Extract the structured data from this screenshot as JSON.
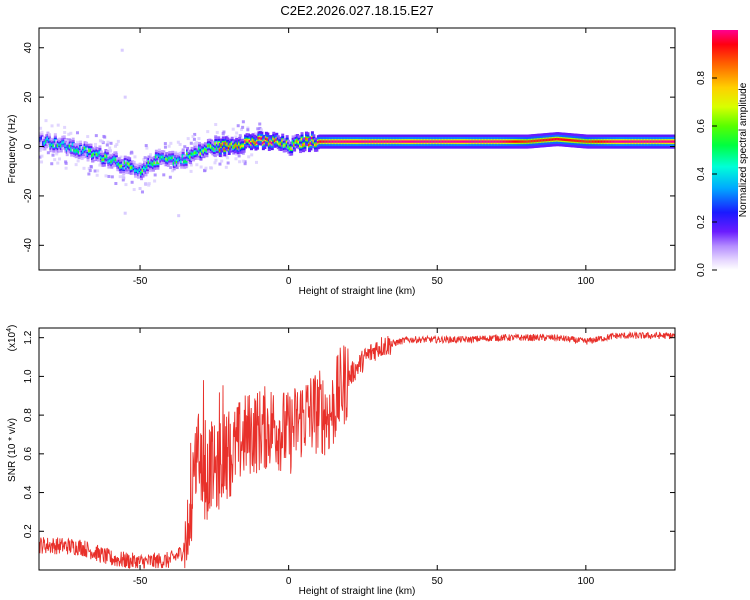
{
  "title": "C2E2.2026.027.18.15.E27",
  "chart_data": [
    {
      "type": "heatmap",
      "xlabel": "Height of straight line (km)",
      "ylabel": "Frequency (Hz)",
      "xlim": [
        -84,
        130
      ],
      "ylim": [
        -50,
        48
      ],
      "xticks": [
        -50,
        0,
        50,
        100
      ],
      "yticks": [
        -40,
        -20,
        0,
        20,
        40
      ],
      "colorbar": {
        "label": "Normalized spectral amplitude",
        "range": [
          0,
          1
        ],
        "ticks": [
          "0.0",
          "0.2",
          "0.4",
          "0.6",
          "0.8"
        ],
        "tick_values": [
          0.0,
          0.2,
          0.4,
          0.6,
          0.8
        ]
      },
      "ridge": {
        "x": [
          -84,
          -78,
          -72,
          -66,
          -60,
          -55,
          -50,
          -46,
          -42,
          -38,
          -34,
          -30,
          -26,
          -22,
          -18,
          -14,
          -10,
          -5,
          0,
          5,
          10,
          15,
          30,
          50,
          70,
          80,
          90,
          100,
          110,
          120,
          130
        ],
        "freq": [
          3,
          1,
          -1,
          -3,
          -5,
          -8,
          -11,
          -6,
          -4,
          -6,
          -4,
          -2,
          0,
          0,
          1,
          2,
          2,
          2,
          0,
          2,
          2,
          2,
          2,
          2,
          2,
          2,
          3,
          2,
          2,
          2,
          2
        ],
        "amplitude": [
          0.4,
          0.45,
          0.45,
          0.5,
          0.55,
          0.5,
          0.5,
          0.45,
          0.5,
          0.45,
          0.5,
          0.55,
          0.6,
          0.85,
          0.7,
          0.9,
          1.0,
          0.9,
          0.6,
          0.85,
          0.95,
          1.0,
          1.0,
          1.0,
          1.0,
          0.9,
          0.95,
          0.9,
          1.0,
          1.0,
          1.0
        ]
      }
    },
    {
      "type": "line",
      "xlabel": "Height of straight line (km)",
      "ylabel": "SNR (10 * v/v)",
      "yscale_note": "(x10",
      "yscale_exp": "4",
      "yscale_close": ")",
      "xlim": [
        -84,
        130
      ],
      "ylim": [
        0.0,
        1.25
      ],
      "xticks": [
        -50,
        0,
        50,
        100
      ],
      "yticks": [
        0.2,
        0.4,
        0.6,
        0.8,
        1.0,
        1.2
      ],
      "ytick_labels": [
        "0.2",
        "0.4",
        "0.6",
        "0.8",
        "1.0",
        "1.2"
      ],
      "color": "#e8302a",
      "series_envelope": {
        "x": [
          -84,
          -70,
          -60,
          -50,
          -40,
          -36,
          -33,
          -32,
          -30,
          -28,
          -26,
          -24,
          -22,
          -20,
          -17,
          -14,
          -10,
          -5,
          0,
          5,
          10,
          14,
          18,
          22,
          26,
          30,
          35,
          40,
          50,
          60,
          70,
          80,
          90,
          100,
          110,
          120,
          130
        ],
        "y": [
          0.13,
          0.12,
          0.06,
          0.04,
          0.05,
          0.09,
          0.22,
          0.55,
          0.6,
          0.45,
          0.55,
          0.5,
          0.6,
          0.58,
          0.65,
          0.7,
          0.72,
          0.75,
          0.7,
          0.8,
          0.82,
          0.8,
          0.95,
          1.03,
          1.1,
          1.15,
          1.17,
          1.19,
          1.19,
          1.19,
          1.2,
          1.2,
          1.2,
          1.18,
          1.21,
          1.21,
          1.21
        ]
      }
    }
  ]
}
